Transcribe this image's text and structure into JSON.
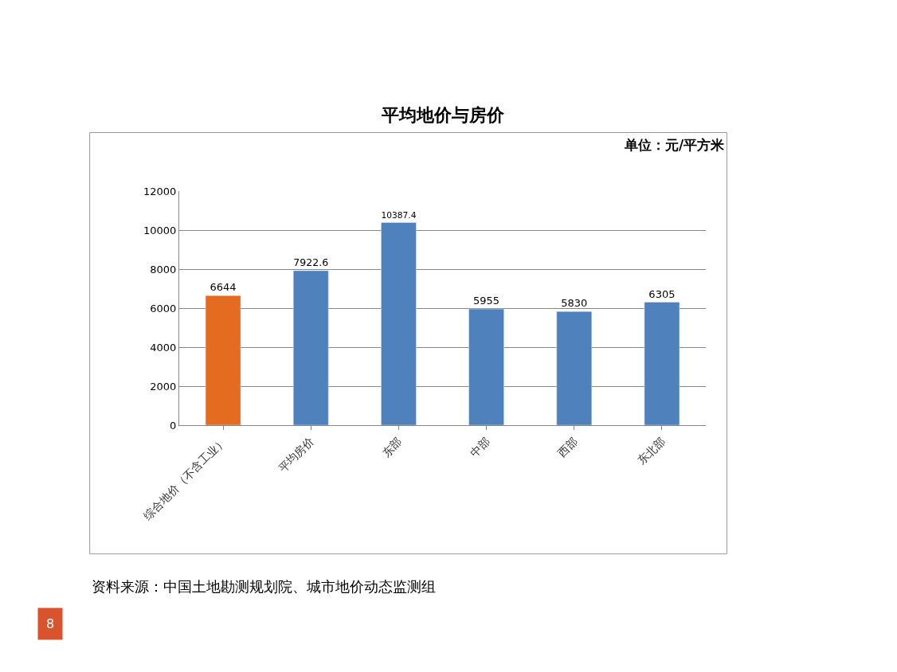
{
  "chart_data": {
    "type": "bar",
    "title": "平均地价与房价",
    "subtitle": "单位：元/平方米",
    "categories": [
      "综合地价（不含工业）",
      "平均房价",
      "东部",
      "中部",
      "西部",
      "东北部"
    ],
    "values": [
      6644,
      7922.6,
      10387.4,
      5955,
      5830,
      6305
    ],
    "colors": [
      "#e46c21",
      "#4f81bd",
      "#4f81bd",
      "#4f81bd",
      "#4f81bd",
      "#4f81bd"
    ],
    "ylim": [
      0,
      12000
    ],
    "yticks": [
      0,
      2000,
      4000,
      6000,
      8000,
      10000,
      12000
    ],
    "grid": "y",
    "data_labels": true,
    "annotations": [
      "资料来源：中国土地勘测规划院、城市地价动态监测组",
      "8"
    ]
  }
}
